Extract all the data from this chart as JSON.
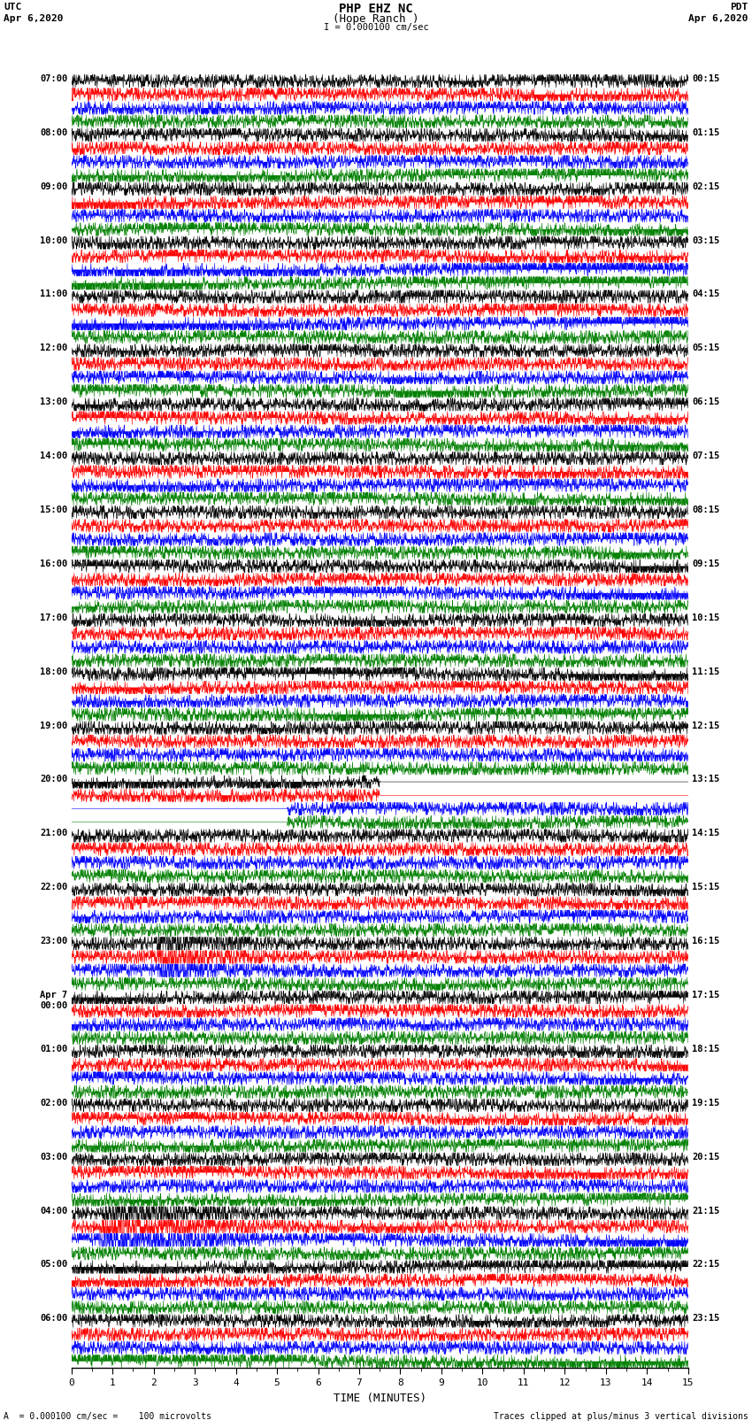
{
  "title_line1": "PHP EHZ NC",
  "title_line2": "(Hope Ranch )",
  "title_line3": "I = 0.000100 cm/sec",
  "left_header_line1": "UTC",
  "left_header_line2": "Apr 6,2020",
  "right_header_line1": "PDT",
  "right_header_line2": "Apr 6,2020",
  "xlabel": "TIME (MINUTES)",
  "footer_left": "A  = 0.000100 cm/sec =    100 microvolts",
  "footer_right": "Traces clipped at plus/minus 3 vertical divisions",
  "trace_colors": [
    "black",
    "red",
    "blue",
    "green"
  ],
  "n_minutes": 15,
  "background_color": "white",
  "fig_width": 8.5,
  "fig_height": 16.13,
  "dpi": 100,
  "left_labels_utc": [
    "07:00",
    "08:00",
    "09:00",
    "10:00",
    "11:00",
    "12:00",
    "13:00",
    "14:00",
    "15:00",
    "16:00",
    "17:00",
    "18:00",
    "19:00",
    "20:00",
    "21:00",
    "22:00",
    "23:00",
    "Apr 7\n00:00",
    "01:00",
    "02:00",
    "03:00",
    "04:00",
    "05:00",
    "06:00"
  ],
  "right_labels_pdt": [
    "00:15",
    "01:15",
    "02:15",
    "03:15",
    "04:15",
    "05:15",
    "06:15",
    "07:15",
    "08:15",
    "09:15",
    "10:15",
    "11:15",
    "12:15",
    "13:15",
    "14:15",
    "15:15",
    "16:15",
    "17:15",
    "18:15",
    "19:15",
    "20:15",
    "21:15",
    "22:15",
    "23:15"
  ]
}
